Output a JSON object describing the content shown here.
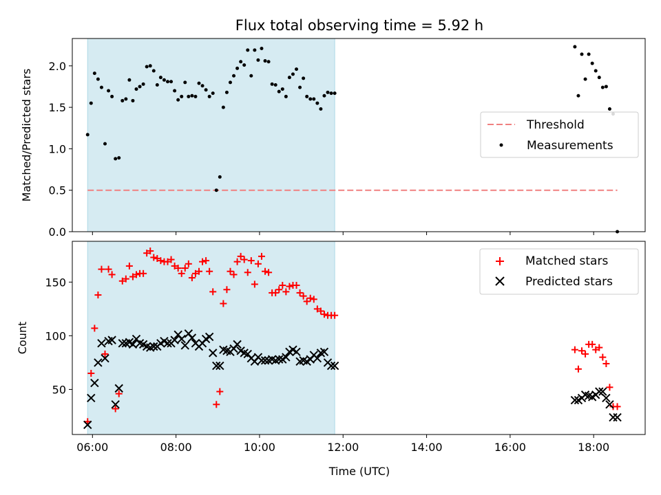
{
  "figure_title": "Flux total observing time = 5.92 h",
  "colors": {
    "threshold": "#f08080",
    "measurements": "#000000",
    "matched": "#ff0000",
    "predicted": "#000000",
    "span": "#add8e6"
  },
  "chart_data": [
    {
      "type": "scatter",
      "panel": "top",
      "title": "Flux total observing time = 5.92 h",
      "xlabel": "",
      "ylabel": "Matched/Predicted stars",
      "xlim": [
        "05:31",
        "19:14"
      ],
      "ylim": [
        0,
        2.33
      ],
      "yticks": [
        0.0,
        0.5,
        1.0,
        1.5,
        2.0
      ],
      "ytick_labels": [
        "0.0",
        "0.5",
        "1.0",
        "1.5",
        "2.0"
      ],
      "grid": false,
      "legend_position": "center-right",
      "highlight_span": [
        "05:53",
        "11:48"
      ],
      "threshold": {
        "name": "Threshold",
        "y": 0.5,
        "x_range": [
          "05:53",
          "18:34"
        ],
        "style": "dashed"
      },
      "series": [
        {
          "name": "Measurements",
          "marker": "dot",
          "x": [
            "05:53",
            "05:58",
            "06:03",
            "06:08",
            "06:13",
            "06:18",
            "06:23",
            "06:28",
            "06:33",
            "06:38",
            "06:43",
            "06:48",
            "06:53",
            "06:58",
            "07:03",
            "07:08",
            "07:13",
            "07:18",
            "07:23",
            "07:28",
            "07:33",
            "07:38",
            "07:43",
            "07:48",
            "07:53",
            "07:58",
            "08:03",
            "08:08",
            "08:13",
            "08:18",
            "08:23",
            "08:28",
            "08:33",
            "08:38",
            "08:43",
            "08:48",
            "08:53",
            "08:58",
            "09:03",
            "09:08",
            "09:13",
            "09:18",
            "09:23",
            "09:28",
            "09:33",
            "09:38",
            "09:43",
            "09:48",
            "09:53",
            "09:58",
            "10:03",
            "10:08",
            "10:13",
            "10:18",
            "10:23",
            "10:28",
            "10:33",
            "10:38",
            "10:43",
            "10:48",
            "10:53",
            "10:58",
            "11:03",
            "11:08",
            "11:13",
            "11:18",
            "11:23",
            "11:28",
            "11:33",
            "11:38",
            "11:43",
            "11:48",
            "17:33",
            "17:38",
            "17:43",
            "17:48",
            "17:53",
            "17:58",
            "18:03",
            "18:08",
            "18:13",
            "18:18",
            "18:23",
            "18:28",
            "18:34"
          ],
          "y": [
            1.17,
            1.55,
            1.91,
            1.84,
            1.74,
            1.06,
            1.7,
            1.63,
            0.88,
            0.89,
            1.58,
            1.6,
            1.83,
            1.58,
            1.72,
            1.75,
            1.78,
            1.99,
            2.0,
            1.94,
            1.77,
            1.86,
            1.83,
            1.81,
            1.81,
            1.7,
            1.59,
            1.63,
            1.8,
            1.63,
            1.64,
            1.63,
            1.79,
            1.76,
            1.71,
            1.63,
            1.67,
            0.5,
            0.66,
            1.5,
            1.68,
            1.8,
            1.88,
            1.97,
            2.05,
            2.01,
            2.19,
            1.88,
            2.19,
            2.07,
            2.21,
            2.06,
            2.05,
            1.78,
            1.77,
            1.69,
            1.72,
            1.63,
            1.86,
            1.9,
            1.96,
            1.74,
            1.85,
            1.63,
            1.6,
            1.6,
            1.55,
            1.48,
            1.64,
            1.68,
            1.67,
            1.67,
            2.23,
            1.64,
            2.14,
            1.84,
            2.14,
            2.03,
            1.94,
            1.86,
            1.74,
            1.75,
            1.48,
            1.42,
            0.0
          ]
        }
      ]
    },
    {
      "type": "scatter",
      "panel": "bottom",
      "xlabel": "Time (UTC)",
      "ylabel": "Count",
      "xlim": [
        "05:31",
        "19:14"
      ],
      "ylim": [
        8,
        188
      ],
      "xticks": [
        "06:00",
        "08:00",
        "10:00",
        "12:00",
        "14:00",
        "16:00",
        "18:00"
      ],
      "yticks": [
        50,
        100,
        150
      ],
      "ytick_labels": [
        "50",
        "100",
        "150"
      ],
      "grid": false,
      "legend_position": "top-right",
      "highlight_span": [
        "05:53",
        "11:48"
      ],
      "series": [
        {
          "name": "Matched stars",
          "marker": "plus",
          "x": [
            "05:53",
            "05:58",
            "06:03",
            "06:08",
            "06:13",
            "06:18",
            "06:23",
            "06:28",
            "06:33",
            "06:38",
            "06:43",
            "06:48",
            "06:53",
            "06:58",
            "07:03",
            "07:08",
            "07:13",
            "07:18",
            "07:23",
            "07:28",
            "07:33",
            "07:38",
            "07:43",
            "07:48",
            "07:53",
            "07:58",
            "08:03",
            "08:08",
            "08:13",
            "08:18",
            "08:23",
            "08:28",
            "08:33",
            "08:38",
            "08:43",
            "08:48",
            "08:53",
            "08:58",
            "09:03",
            "09:08",
            "09:13",
            "09:18",
            "09:23",
            "09:28",
            "09:33",
            "09:38",
            "09:43",
            "09:48",
            "09:53",
            "09:58",
            "10:03",
            "10:08",
            "10:13",
            "10:18",
            "10:23",
            "10:28",
            "10:33",
            "10:38",
            "10:43",
            "10:48",
            "10:53",
            "10:58",
            "11:03",
            "11:08",
            "11:13",
            "11:18",
            "11:23",
            "11:28",
            "11:33",
            "11:38",
            "11:43",
            "11:48",
            "17:33",
            "17:38",
            "17:43",
            "17:48",
            "17:53",
            "17:58",
            "18:03",
            "18:08",
            "18:13",
            "18:18",
            "18:23",
            "18:28",
            "18:34"
          ],
          "y": [
            20,
            65,
            107,
            138,
            162,
            83,
            162,
            157,
            32,
            46,
            151,
            153,
            165,
            155,
            157,
            158,
            158,
            177,
            179,
            173,
            172,
            170,
            169,
            169,
            171,
            165,
            163,
            158,
            163,
            167,
            154,
            158,
            160,
            169,
            170,
            160,
            141,
            36,
            48,
            130,
            143,
            160,
            157,
            169,
            174,
            171,
            159,
            170,
            148,
            167,
            174,
            160,
            159,
            140,
            140,
            143,
            147,
            141,
            146,
            147,
            147,
            140,
            137,
            132,
            135,
            134,
            125,
            123,
            120,
            119,
            119,
            119,
            87,
            69,
            86,
            83,
            92,
            92,
            87,
            89,
            80,
            74,
            52,
            34,
            34
          ]
        },
        {
          "name": "Predicted stars",
          "marker": "x",
          "x": [
            "05:53",
            "05:58",
            "06:03",
            "06:08",
            "06:13",
            "06:18",
            "06:23",
            "06:28",
            "06:33",
            "06:38",
            "06:43",
            "06:48",
            "06:53",
            "06:58",
            "07:03",
            "07:08",
            "07:13",
            "07:18",
            "07:23",
            "07:28",
            "07:33",
            "07:38",
            "07:43",
            "07:48",
            "07:53",
            "07:58",
            "08:03",
            "08:08",
            "08:13",
            "08:18",
            "08:23",
            "08:28",
            "08:33",
            "08:38",
            "08:43",
            "08:48",
            "08:53",
            "08:58",
            "09:03",
            "09:08",
            "09:13",
            "09:18",
            "09:23",
            "09:28",
            "09:33",
            "09:38",
            "09:43",
            "09:48",
            "09:53",
            "09:58",
            "10:03",
            "10:08",
            "10:13",
            "10:18",
            "10:23",
            "10:28",
            "10:33",
            "10:38",
            "10:43",
            "10:48",
            "10:53",
            "10:58",
            "11:03",
            "11:08",
            "11:13",
            "11:18",
            "11:23",
            "11:28",
            "11:33",
            "11:38",
            "11:43",
            "11:48",
            "17:33",
            "17:38",
            "17:43",
            "17:48",
            "17:53",
            "17:58",
            "18:03",
            "18:08",
            "18:13",
            "18:18",
            "18:23",
            "18:28",
            "18:34"
          ],
          "y": [
            17,
            42,
            56,
            75,
            93,
            79,
            95,
            96,
            36,
            51,
            93,
            93,
            94,
            92,
            97,
            93,
            92,
            90,
            89,
            90,
            90,
            93,
            95,
            93,
            93,
            96,
            101,
            97,
            91,
            102,
            98,
            93,
            90,
            93,
            97,
            99,
            84,
            72,
            72,
            87,
            86,
            85,
            88,
            92,
            86,
            84,
            83,
            79,
            76,
            80,
            77,
            77,
            77,
            78,
            77,
            78,
            78,
            80,
            85,
            87,
            85,
            76,
            77,
            76,
            78,
            82,
            79,
            84,
            85,
            75,
            72,
            72,
            40,
            40,
            42,
            45,
            44,
            43,
            45,
            48,
            48,
            42,
            36,
            24,
            24
          ]
        }
      ]
    }
  ]
}
